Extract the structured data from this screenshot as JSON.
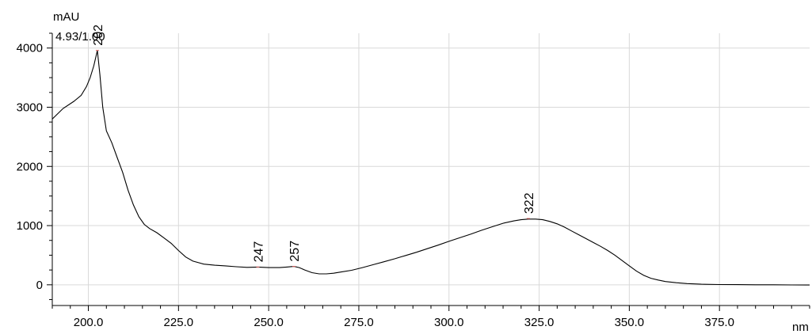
{
  "chart_data": {
    "type": "line",
    "title": "",
    "xlabel": "nm",
    "ylabel": "mAU",
    "corner_annotation": "4.93/1.00",
    "xlim": [
      190,
      400
    ],
    "ylim": [
      -350,
      4250
    ],
    "grid": true,
    "x_ticks": [
      200,
      225,
      250,
      275,
      300,
      325,
      350,
      375
    ],
    "x_tick_labels": [
      "200.0",
      "225.0",
      "250.0",
      "275.0",
      "300.0",
      "325.0",
      "350.0",
      "375.0"
    ],
    "y_ticks": [
      0,
      1000,
      2000,
      3000,
      4000
    ],
    "y_tick_labels": [
      "0",
      "1000",
      "2000",
      "3000",
      "4000"
    ],
    "peaks": [
      {
        "label": "202",
        "x": 202.5,
        "y": 3960
      },
      {
        "label": "247",
        "x": 247,
        "y": 300
      },
      {
        "label": "257",
        "x": 257,
        "y": 310
      },
      {
        "label": "322",
        "x": 322,
        "y": 1120
      }
    ],
    "series": [
      {
        "x": [
          190,
          193,
          196,
          198,
          199.5,
          200.5,
          201.5,
          202.5,
          203.2,
          204,
          205,
          206.5,
          208,
          209.5,
          211,
          212.5,
          214,
          215.5,
          217,
          219,
          221,
          223,
          225,
          227,
          229,
          232,
          235,
          238,
          241,
          244,
          247,
          250,
          253,
          255,
          257,
          258.5,
          260,
          262,
          264,
          266,
          268,
          270,
          273,
          276,
          279,
          282,
          285,
          288,
          291,
          294,
          297,
          300,
          303,
          306,
          309,
          312,
          315,
          318,
          320,
          322,
          324,
          326,
          328,
          330,
          332,
          334,
          336,
          338,
          340,
          342,
          344,
          346,
          348,
          350,
          352,
          354,
          356,
          358,
          360,
          363,
          366,
          370,
          375,
          380,
          385,
          390,
          395,
          400
        ],
        "y": [
          2800,
          2980,
          3100,
          3200,
          3350,
          3500,
          3700,
          3960,
          3550,
          3000,
          2600,
          2400,
          2150,
          1900,
          1600,
          1350,
          1150,
          1020,
          950,
          880,
          790,
          700,
          580,
          470,
          400,
          350,
          330,
          320,
          305,
          295,
          300,
          290,
          290,
          300,
          310,
          290,
          250,
          205,
          185,
          185,
          195,
          215,
          245,
          290,
          340,
          390,
          440,
          495,
          550,
          610,
          670,
          735,
          795,
          855,
          920,
          980,
          1040,
          1080,
          1100,
          1110,
          1110,
          1100,
          1070,
          1030,
          975,
          910,
          845,
          780,
          715,
          650,
          580,
          500,
          410,
          320,
          230,
          160,
          110,
          80,
          55,
          35,
          20,
          10,
          5,
          3,
          0,
          0,
          -2,
          -3
        ]
      }
    ]
  }
}
